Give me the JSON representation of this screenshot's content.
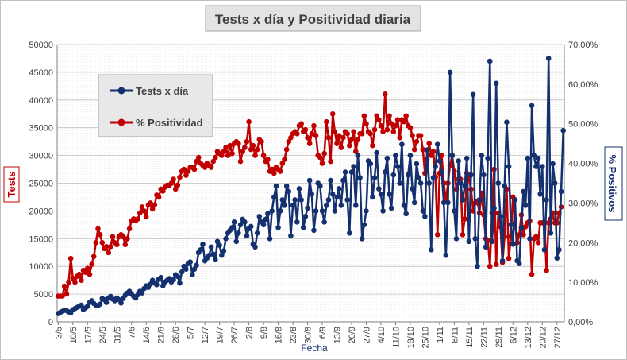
{
  "chart_data": {
    "type": "line",
    "title": "Tests x día y Positividad  diaria",
    "xlabel": "Fecha",
    "ylabel_left": "Tests",
    "ylabel_right": "% Positivos",
    "ylim_left": [
      0,
      50000
    ],
    "ylim_right": [
      0,
      70
    ],
    "yticks_left": [
      "0",
      "5000",
      "10000",
      "15000",
      "20000",
      "25000",
      "30000",
      "35000",
      "40000",
      "45000",
      "50000"
    ],
    "yticks_right": [
      "0,00%",
      "10,00%",
      "20,00%",
      "30,00%",
      "40,00%",
      "50,00%",
      "60,00%",
      "70,00%"
    ],
    "xticks": [
      "3/5",
      "10/5",
      "17/5",
      "24/5",
      "31/5",
      "7/6",
      "14/6",
      "21/6",
      "28/6",
      "5/7",
      "12/7",
      "19/7",
      "26/7",
      "2/8",
      "9/8",
      "16/8",
      "23/8",
      "30/8",
      "6/9",
      "13/9",
      "20/9",
      "27/9",
      "4/10",
      "11/10",
      "18/10",
      "25/10",
      "1/11",
      "8/11",
      "15/11",
      "22/11",
      "29/11",
      "6/12",
      "13/12",
      "20/12",
      "27/12"
    ],
    "legend": {
      "position": "top-left",
      "entries": [
        "Tests x día",
        "% Positividad"
      ]
    },
    "colors": {
      "tests": "#14306e",
      "positividad": "#c00000",
      "grid": "#cccccc",
      "title_bg": "#e3e3e3",
      "legend_bg": "#e8e8e8"
    },
    "grid": true,
    "series": [
      {
        "name": "Tests x día",
        "axis": "left",
        "values": [
          1500,
          1700,
          1900,
          2100,
          2000,
          1800,
          1600,
          2200,
          2400,
          2600,
          2800,
          3000,
          2200,
          2500,
          2800,
          3500,
          3800,
          3300,
          3000,
          2900,
          3200,
          4200,
          4000,
          3500,
          4300,
          4600,
          4100,
          3800,
          4300,
          4000,
          3400,
          4200,
          4800,
          5200,
          5500,
          5000,
          4600,
          4300,
          4900,
          5500,
          5200,
          6000,
          6500,
          6200,
          6800,
          7500,
          7000,
          6700,
          7700,
          8000,
          6500,
          7200,
          7500,
          7800,
          7200,
          7600,
          8500,
          8200,
          7000,
          9000,
          10000,
          9500,
          10500,
          10800,
          8500,
          9500,
          10200,
          12500,
          13000,
          14000,
          11000,
          11500,
          12000,
          13500,
          12200,
          11200,
          14500,
          13800,
          12000,
          12800,
          15000,
          16000,
          16500,
          17000,
          18000,
          14500,
          16000,
          17500,
          18500,
          18000,
          15500,
          16800,
          17200,
          14000,
          13500,
          16000,
          19000,
          18000,
          17500,
          18500,
          19500,
          15000,
          20000,
          22500,
          24500,
          17000,
          20000,
          22000,
          21000,
          24500,
          23500,
          15500,
          21000,
          22000,
          18000,
          24000,
          22000,
          17000,
          19000,
          20500,
          25500,
          23000,
          16500,
          20000,
          25000,
          24500,
          20000,
          18000,
          21000,
          22000,
          25500,
          23000,
          20000,
          22500,
          24000,
          21000,
          25500,
          27000,
          22000,
          16000,
          27000,
          28000,
          21000,
          30000,
          26000,
          15000,
          17500,
          20000,
          29000,
          28500,
          22500,
          26000,
          30500,
          24000,
          23000,
          20000,
          27000,
          29500,
          23000,
          20500,
          26500,
          30000,
          28000,
          25000,
          32000,
          21000,
          19500,
          26500,
          30000,
          24000,
          21500,
          28500,
          26000,
          25000,
          20000,
          19000,
          31000,
          25000,
          13000,
          26000,
          28000,
          32000,
          29000,
          27000,
          21500,
          12000,
          21500,
          45000,
          30000,
          20000,
          15000,
          29000,
          25000,
          22000,
          24500,
          29500,
          14500,
          26500,
          41000,
          15000,
          10000,
          22000,
          30000,
          26500,
          13500,
          29500,
          47000,
          14500,
          20500,
          43000,
          25000,
          19000,
          11000,
          24500,
          36000,
          28000,
          17500,
          14000,
          22000,
          11000,
          10500,
          17000,
          23500,
          21000,
          29500,
          15000,
          39000,
          30000,
          28000,
          29500,
          23000,
          28000,
          13000,
          22000,
          47500,
          16000,
          28500,
          25000,
          11500,
          13000,
          23500,
          34500
        ]
      },
      {
        "name": "% Positividad",
        "axis": "right",
        "values": [
          6.5,
          6.5,
          6.5,
          9.0,
          7.0,
          10.0,
          16.0,
          11.0,
          10.0,
          11.5,
          12.0,
          10.5,
          13.0,
          12.5,
          13.5,
          12.0,
          14.5,
          16.5,
          20.0,
          23.5,
          22.0,
          20.0,
          18.5,
          19.0,
          17.5,
          19.0,
          21.5,
          20.0,
          19.5,
          21.5,
          22.0,
          21.5,
          19.5,
          21.0,
          23.5,
          25.5,
          26.0,
          25.5,
          26.0,
          27.5,
          29.0,
          28.0,
          26.5,
          29.5,
          30.0,
          28.5,
          29.5,
          32.0,
          31.5,
          33.5,
          33.0,
          34.0,
          34.5,
          34.5,
          35.0,
          36.0,
          33.5,
          34.5,
          36.5,
          38.0,
          38.5,
          37.0,
          38.0,
          39.0,
          39.0,
          38.5,
          40.5,
          41.5,
          40.0,
          39.5,
          39.0,
          40.0,
          39.5,
          39.0,
          40.5,
          41.5,
          43.0,
          42.5,
          42.0,
          43.0,
          44.0,
          42.0,
          44.5,
          42.5,
          45.0,
          45.5,
          45.0,
          40.5,
          43.0,
          44.0,
          45.5,
          50.5,
          43.5,
          44.5,
          42.0,
          43.5,
          46.0,
          45.5,
          42.0,
          40.5,
          41.0,
          38.0,
          38.5,
          37.5,
          39.0,
          38.5,
          38.0,
          40.0,
          41.0,
          43.5,
          45.5,
          46.5,
          47.5,
          48.0,
          47.5,
          49.5,
          50.0,
          48.0,
          48.5,
          46.5,
          45.0,
          47.5,
          49.5,
          47.0,
          42.0,
          41.5,
          40.0,
          42.5,
          50.5,
          46.5,
          40.5,
          52.5,
          48.0,
          45.0,
          47.0,
          44.0,
          46.5,
          48.0,
          47.5,
          44.5,
          46.0,
          48.0,
          43.0,
          46.0,
          47.5,
          47.5,
          52.0,
          50.0,
          48.0,
          47.5,
          44.5,
          48.5,
          52.0,
          51.0,
          49.5,
          48.0,
          57.5,
          48.5,
          52.0,
          50.0,
          48.0,
          49.5,
          51.0,
          46.5,
          51.0,
          50.5,
          52.0,
          49.5,
          49.0,
          47.0,
          43.5,
          45.5,
          47.0,
          47.0,
          43.5,
          37.5,
          41.0,
          45.0,
          42.0,
          43.0,
          36.5,
          22.0,
          37.5,
          42.0,
          35.0,
          30.5,
          35.0,
          39.5,
          42.0,
          38.0,
          33.5,
          36.0,
          36.0,
          22.0,
          26.0,
          37.5,
          36.0,
          33.5,
          28.0,
          30.0,
          30.5,
          27.5,
          32.5,
          27.0,
          21.0,
          20.5,
          14.0,
          27.5,
          38.5,
          14.5,
          27.5,
          24.0,
          15.0,
          21.5,
          33.5,
          16.0,
          21.5,
          31.5,
          25.0,
          20.0,
          22.0,
          27.0,
          22.0,
          24.0,
          25.0,
          25.5,
          12.0,
          21.0,
          21.5,
          20.0,
          25.0,
          25.0,
          25.0,
          13.0,
          25.0,
          26.0,
          27.5,
          25.0,
          25.0,
          27.5,
          29.0
        ]
      }
    ]
  }
}
